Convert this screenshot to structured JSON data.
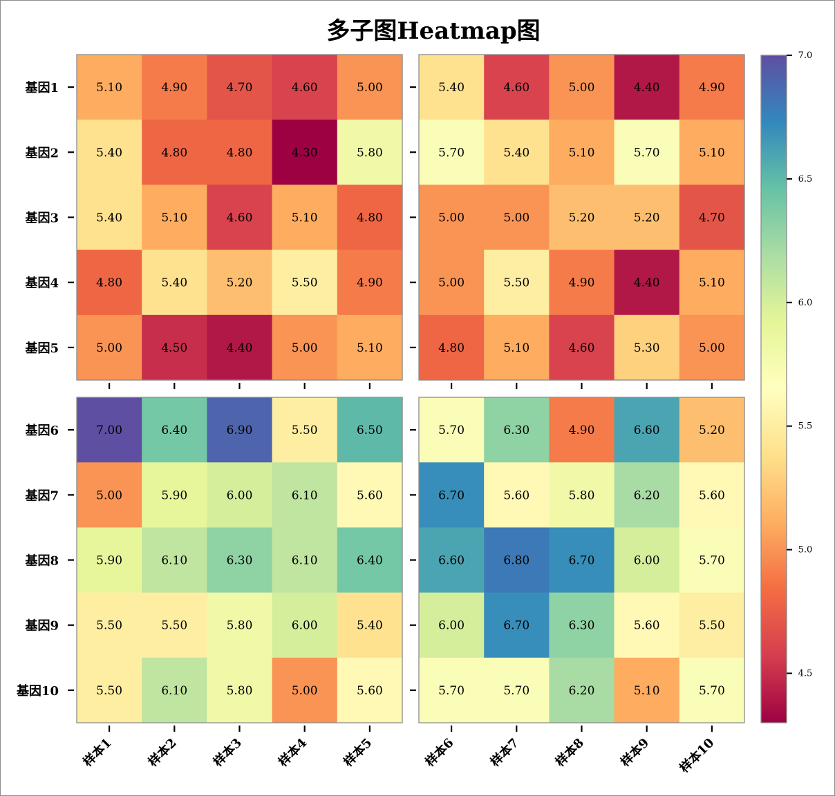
{
  "chart_data": {
    "type": "heatmap",
    "title": "多子图Heatmap图",
    "rows": [
      "基因1",
      "基因2",
      "基因3",
      "基因4",
      "基因5",
      "基因6",
      "基因7",
      "基因8",
      "基因9",
      "基因10"
    ],
    "columns": [
      "样本1",
      "样本2",
      "样本3",
      "样本4",
      "样本5",
      "样本6",
      "样本7",
      "样本8",
      "样本9",
      "样本10"
    ],
    "values": [
      [
        5.1,
        4.9,
        4.7,
        4.6,
        5.0,
        5.4,
        4.6,
        5.0,
        4.4,
        4.9
      ],
      [
        5.4,
        4.8,
        4.8,
        4.3,
        5.8,
        5.7,
        5.4,
        5.1,
        5.7,
        5.1
      ],
      [
        5.4,
        5.1,
        4.6,
        5.1,
        4.8,
        5.0,
        5.0,
        5.2,
        5.2,
        4.7
      ],
      [
        4.8,
        5.4,
        5.2,
        5.5,
        4.9,
        5.0,
        5.5,
        4.9,
        4.4,
        5.1
      ],
      [
        5.0,
        4.5,
        4.4,
        5.0,
        5.1,
        4.8,
        5.1,
        4.6,
        5.3,
        5.0
      ],
      [
        7.0,
        6.4,
        6.9,
        5.5,
        6.5,
        5.7,
        6.3,
        4.9,
        6.6,
        5.2
      ],
      [
        5.0,
        5.9,
        6.0,
        6.1,
        5.6,
        6.7,
        5.6,
        5.8,
        6.2,
        5.6
      ],
      [
        5.9,
        6.1,
        6.3,
        6.1,
        6.4,
        6.6,
        6.8,
        6.7,
        6.0,
        5.7
      ],
      [
        5.5,
        5.5,
        5.8,
        6.0,
        5.4,
        6.0,
        6.7,
        6.3,
        5.6,
        5.5
      ],
      [
        5.5,
        6.1,
        5.8,
        5.0,
        5.6,
        5.7,
        5.7,
        6.2,
        5.1,
        5.7
      ]
    ],
    "layout": "2x2 subplots (rows 基因1-5 / 基因6-10, columns 样本1-5 / 样本6-10)",
    "value_format": "2 decimals",
    "colormap": "Spectral",
    "vmin": 4.3,
    "vmax": 7.0,
    "colorbar": {
      "position": "right",
      "ticks": [
        4.5,
        5.0,
        5.5,
        6.0,
        6.5,
        7.0
      ],
      "tick_labels": [
        "4.5",
        "5.0",
        "5.5",
        "6.0",
        "6.5",
        "7.0"
      ]
    },
    "grid": false
  },
  "colors": {
    "axis": "#8c8c8c",
    "spectral_stops": [
      "#9e0142",
      "#d53e4f",
      "#f46d43",
      "#fdae61",
      "#fee08b",
      "#ffffbf",
      "#e6f598",
      "#abdda4",
      "#66c2a5",
      "#3288bd",
      "#5e4fa2"
    ]
  }
}
